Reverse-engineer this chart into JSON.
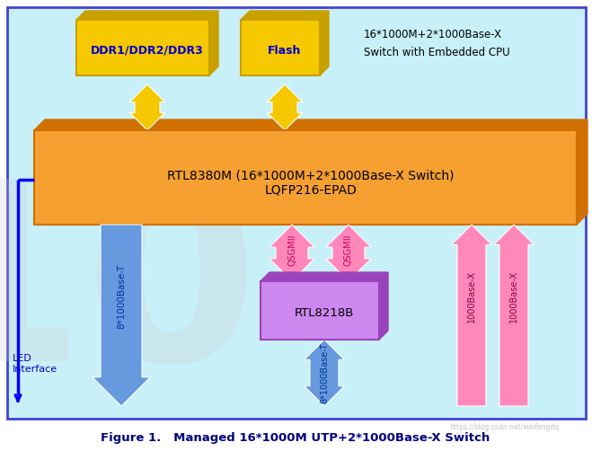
{
  "bg_outer": "#c8f0f8",
  "bg_inner": "#c8f0f8",
  "border_color": "#4444cc",
  "title": "Figure 1.   Managed 16*1000M UTP+2*1000Base-X Switch",
  "title_color": "#000080",
  "caption_right_line1": "16*1000M+2*1000Base-X",
  "caption_right_line2": "Switch with Embedded CPU",
  "caption_color": "#000000",
  "ddr_label": "DDR1/DDR2/DDR3",
  "ddr_label_color": "#0000cc",
  "flash_label": "Flash",
  "flash_label_color": "#0000cc",
  "rtl8380_label": "RTL8380M (16*1000M+2*1000Base-X Switch)\nLQFP216-EPAD",
  "rtl8380_label_color": "#000000",
  "rtl8218_label": "RTL8218B",
  "rtl8218_label_color": "#000000",
  "yellow_fc": "#f5c800",
  "yellow_ec": "#c8a000",
  "orange_fc": "#f5a030",
  "orange_ec": "#d07000",
  "purple_fc": "#cc88ee",
  "purple_ec": "#9944bb",
  "blue_arrow_color": "#6699dd",
  "pink_arrow_color": "#ff88bb",
  "gold_arrow_color": "#f5c800",
  "led_color": "#0000cc"
}
